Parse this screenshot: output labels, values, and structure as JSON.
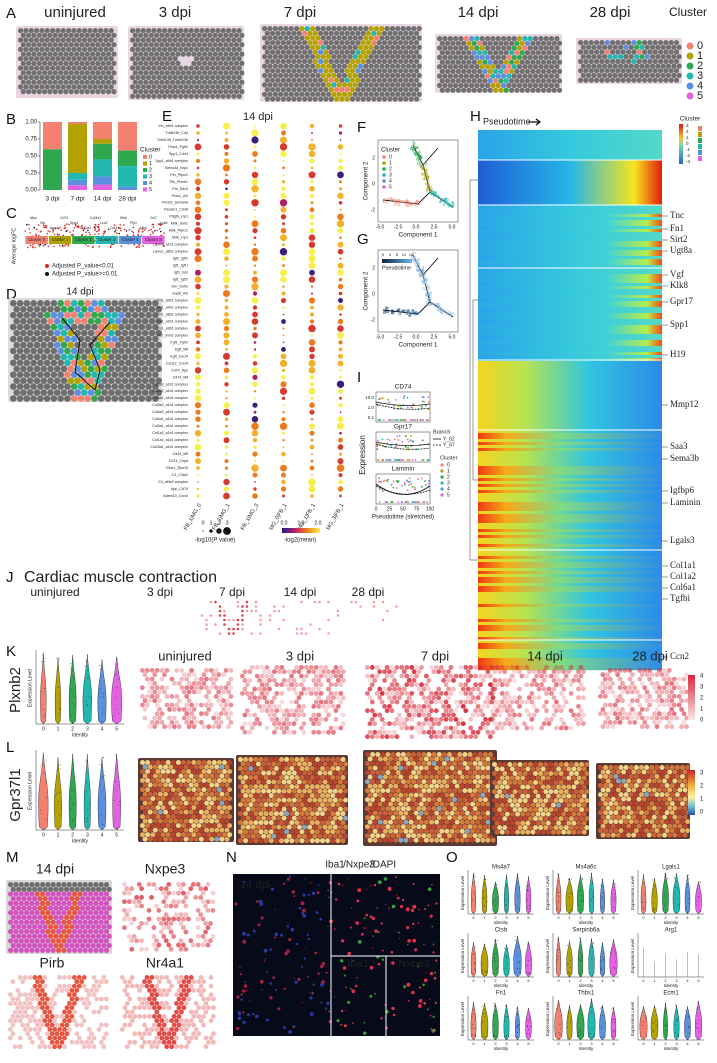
{
  "panel_a": {
    "letter": "A",
    "titles": [
      "uninjured",
      "3 dpi",
      "7 dpi",
      "14 dpi",
      "28 dpi"
    ],
    "legend_title": "Cluster",
    "legend": [
      "0",
      "1",
      "2",
      "3",
      "4",
      "5"
    ]
  },
  "panel_b": {
    "letter": "B",
    "type": "bar",
    "stacked": true,
    "categories": [
      "3 dpi",
      "7 dpi",
      "14 dpi",
      "28 dpi"
    ],
    "series": [
      {
        "name": "0",
        "color": "#f4806f",
        "values": [
          0.4,
          0.03,
          0.25,
          0.42
        ]
      },
      {
        "name": "1",
        "color": "#b3a200",
        "values": [
          0,
          0.72,
          0.07,
          0
        ]
      },
      {
        "name": "2",
        "color": "#2fa84f",
        "values": [
          0.6,
          0,
          0.23,
          0.23
        ]
      },
      {
        "name": "3",
        "color": "#22b8b0",
        "values": [
          0,
          0.1,
          0.25,
          0.3
        ]
      },
      {
        "name": "4",
        "color": "#5b8fe0",
        "values": [
          0,
          0.08,
          0.12,
          0.05
        ]
      },
      {
        "name": "5",
        "color": "#e461e4",
        "values": [
          0,
          0.07,
          0.08,
          0
        ]
      }
    ],
    "ylim": [
      0,
      1
    ],
    "yticks": [
      {
        "value": 0,
        "label": "0.00"
      },
      {
        "value": 0.25,
        "label": "0.25"
      },
      {
        "value": 0.5,
        "label": "0.50"
      },
      {
        "value": 0.75,
        "label": "0.75"
      },
      {
        "value": 1,
        "label": "1.00"
      }
    ],
    "legend_title": "Cluster"
  },
  "panel_c": {
    "letter": "C",
    "y_label": "Average logFC",
    "clusters": [
      "Cluster 0",
      "Cluster 1",
      "Cluster 2",
      "Cluster 3",
      "Cluster 4",
      "Cluster 5"
    ],
    "genes": [
      "Mpo",
      "Vtn",
      "Apod",
      "Cd74",
      "Spp1",
      "Col1a1",
      "Col3a1",
      "Lcn2",
      "Ccl3",
      "Klk6",
      "Plp1",
      "Mbp",
      "Ccl7",
      "Ly6a"
    ],
    "legend": [
      "Adjusted P_value<0.01",
      "Adjusted P_value>=0.01"
    ]
  },
  "panel_d": {
    "letter": "D",
    "title": "14 dpi"
  },
  "panel_e": {
    "letter": "E",
    "title": "14 dpi",
    "rows": [
      "Vtn_a5b1 complex",
      "Tnfsf13b_Cd4",
      "Tnfsf13b_Tnfrsf13b",
      "Timp1_Fgfr2",
      "Spp1_Cd44",
      "Spp1_a4b1 complex",
      "Sema3a_Nrp1",
      "Ptn_Ptprz1",
      "Ptn_Plxnb1",
      "Ptn_Sdc3",
      "Pros1_Axl",
      "Plxnb2_Sema4d",
      "Pecam1_Cd38",
      "Pdgfb_Lrp1",
      "Mdk_Sorl1",
      "Mdk_Ptprz1",
      "Mdk_Lrp1",
      "Lamb1_a1b1 complex",
      "Lamc1_a6b1 complex",
      "Igf2_Igf2r",
      "Igf1_Igf1r",
      "Igf1_Insr",
      "Igf1_Igf2r",
      "Grn_Sort1",
      "Gas6_Axl",
      "Fn1_a5b1 complex",
      "Fn1_a4b1 complex",
      "Fn1_a8b1 complex",
      "Fn1_a3b1 complex",
      "Fn1_a9b1 complex",
      "Fn1_aVb1 complex",
      "Fgf1_Fgfr2",
      "Egfl_Mif",
      "Egfl_Cxcr4",
      "Cxcl12_Cxcr4",
      "Cd74_App",
      "Cd74_Mif",
      "Col6a3_a1b1 complex",
      "Col6a2_a1b1 complex",
      "Col6a1_a1b1 complex",
      "Col5a2_a1b1 complex",
      "Col4a2_a1b1 complex",
      "Col4a1_a1b1 complex",
      "Col3a1_a1b1 complex",
      "Col1a2_a1b1 complex",
      "Col1a1_a1b1 complex",
      "Col18a1_a1b1 complex",
      "Cd44_Mif",
      "Cd74_Copa",
      "C5ar1_Rps19",
      "C3_C3ar1",
      "C3_aMb2 complex",
      "App_Cd74",
      "Adam10_Cxcr2"
    ],
    "columns": [
      "FB_1|MG_0",
      "FB_1|MG_1",
      "FB_1|MG_3",
      "MG_0|FB_1",
      "MG_1|FB_1",
      "MG_3|FB_1"
    ],
    "size_legend_title": "-log10(P value)",
    "size_ticks": [
      "0",
      "1",
      "2",
      "3"
    ],
    "color_legend_title": "-log2(mean)",
    "color_ticks": [
      "0.0",
      "1.0",
      "2.0"
    ]
  },
  "panel_f": {
    "letter": "F",
    "x_label": "Component 1",
    "y_label": "Component 2",
    "legend_title": "Cluster",
    "legend": [
      "0",
      "1",
      "2",
      "3",
      "4",
      "5"
    ],
    "xticks": [
      "-5.0",
      "-2.5",
      "0.0",
      "2.5",
      "5.0"
    ],
    "yticks": [
      "-2",
      "0",
      "2"
    ]
  },
  "panel_g": {
    "letter": "G",
    "x_label": "Component 1",
    "y_label": "Component 2",
    "legend_title": "Pseudotime",
    "scale_ticks": [
      "0",
      "4",
      "8",
      "12",
      "16"
    ],
    "xticks": [
      "-5.0",
      "-2.5",
      "0.0",
      "2.5",
      "5.0"
    ],
    "yticks": [
      "-2",
      "0",
      "2"
    ]
  },
  "panel_h": {
    "letter": "H",
    "x_label": "Pseudotime",
    "legend_title": "Cluster",
    "scale_ticks": [
      "3",
      "2",
      "1",
      "0",
      "-1",
      "-2",
      "-3"
    ],
    "genes": [
      "Tnc",
      "Fn1",
      "Sirt2",
      "Ugt8a",
      "Vgf",
      "Klk8",
      "Gpr17",
      "Spp1",
      "H19",
      "Mmp12",
      "Saa3",
      "Sema3b",
      "Igfbp6",
      "Laminin",
      "Lgals3",
      "Col1a1",
      "Col1a2",
      "Col6a1",
      "Tgfbi",
      "Ccn2"
    ]
  },
  "panel_i": {
    "letter": "I",
    "plots": [
      "CD74",
      "Gpr17",
      "Laminin"
    ],
    "y_label": "Expression",
    "x_label": "Pseudotime (stretched)",
    "xticks": [
      "0",
      "25",
      "50",
      "75",
      "100"
    ],
    "yticks": [
      "10.0",
      "1.0",
      "0.1"
    ],
    "branch_title": "Branch",
    "branches": [
      "Y_62",
      "Y_67"
    ],
    "cluster_title": "Cluster",
    "clusters": [
      "0",
      "1",
      "2",
      "3",
      "4",
      "5"
    ]
  },
  "panel_j": {
    "letter": "J",
    "title": "Cardiac muscle contraction",
    "timepoints": [
      "uninjured",
      "3 dpi",
      "7 dpi",
      "14 dpi",
      "28 dpi"
    ]
  },
  "panel_k": {
    "letter": "K",
    "gene": "Plxnb2",
    "timepoints": [
      "uninjured",
      "3 dpi",
      "7 dpi",
      "14 dpi",
      "28 dpi"
    ],
    "y_label": "Expression Level",
    "x_label": "Identity",
    "identities": [
      "0",
      "1",
      "2",
      "3",
      "4",
      "5"
    ],
    "scale_ticks": [
      "0",
      "1",
      "2",
      "3",
      "4"
    ]
  },
  "panel_l": {
    "letter": "L",
    "gene": "Gpr37l1",
    "y_label": "Expression Level",
    "x_label": "Identity",
    "identities": [
      "0",
      "1",
      "2",
      "3",
      "4",
      "5"
    ],
    "scale_ticks": [
      "0",
      "1",
      "2",
      "3"
    ]
  },
  "panel_m": {
    "letter": "M",
    "titles": [
      "14 dpi",
      "Nxpe3",
      "Pirb",
      "Nr4a1"
    ]
  },
  "panel_n": {
    "letter": "N",
    "stain": [
      "Iba1",
      "/Nxpe3",
      "/DAPI"
    ],
    "inset_label": "14 dpi",
    "sub_labels": [
      "Iba1",
      "Nxpe3"
    ]
  },
  "panel_o": {
    "letter": "O",
    "genes": [
      "Ms4a7",
      "Ms4a6c",
      "Lgals1",
      "Ctsb",
      "Serpinb6a",
      "Arg1",
      "Fn1",
      "Thbs1",
      "Ecm1"
    ],
    "y_label": "Expression Level",
    "x_label": "Identity",
    "identities": [
      "0",
      "1",
      "2",
      "3",
      "4",
      "5"
    ]
  }
}
